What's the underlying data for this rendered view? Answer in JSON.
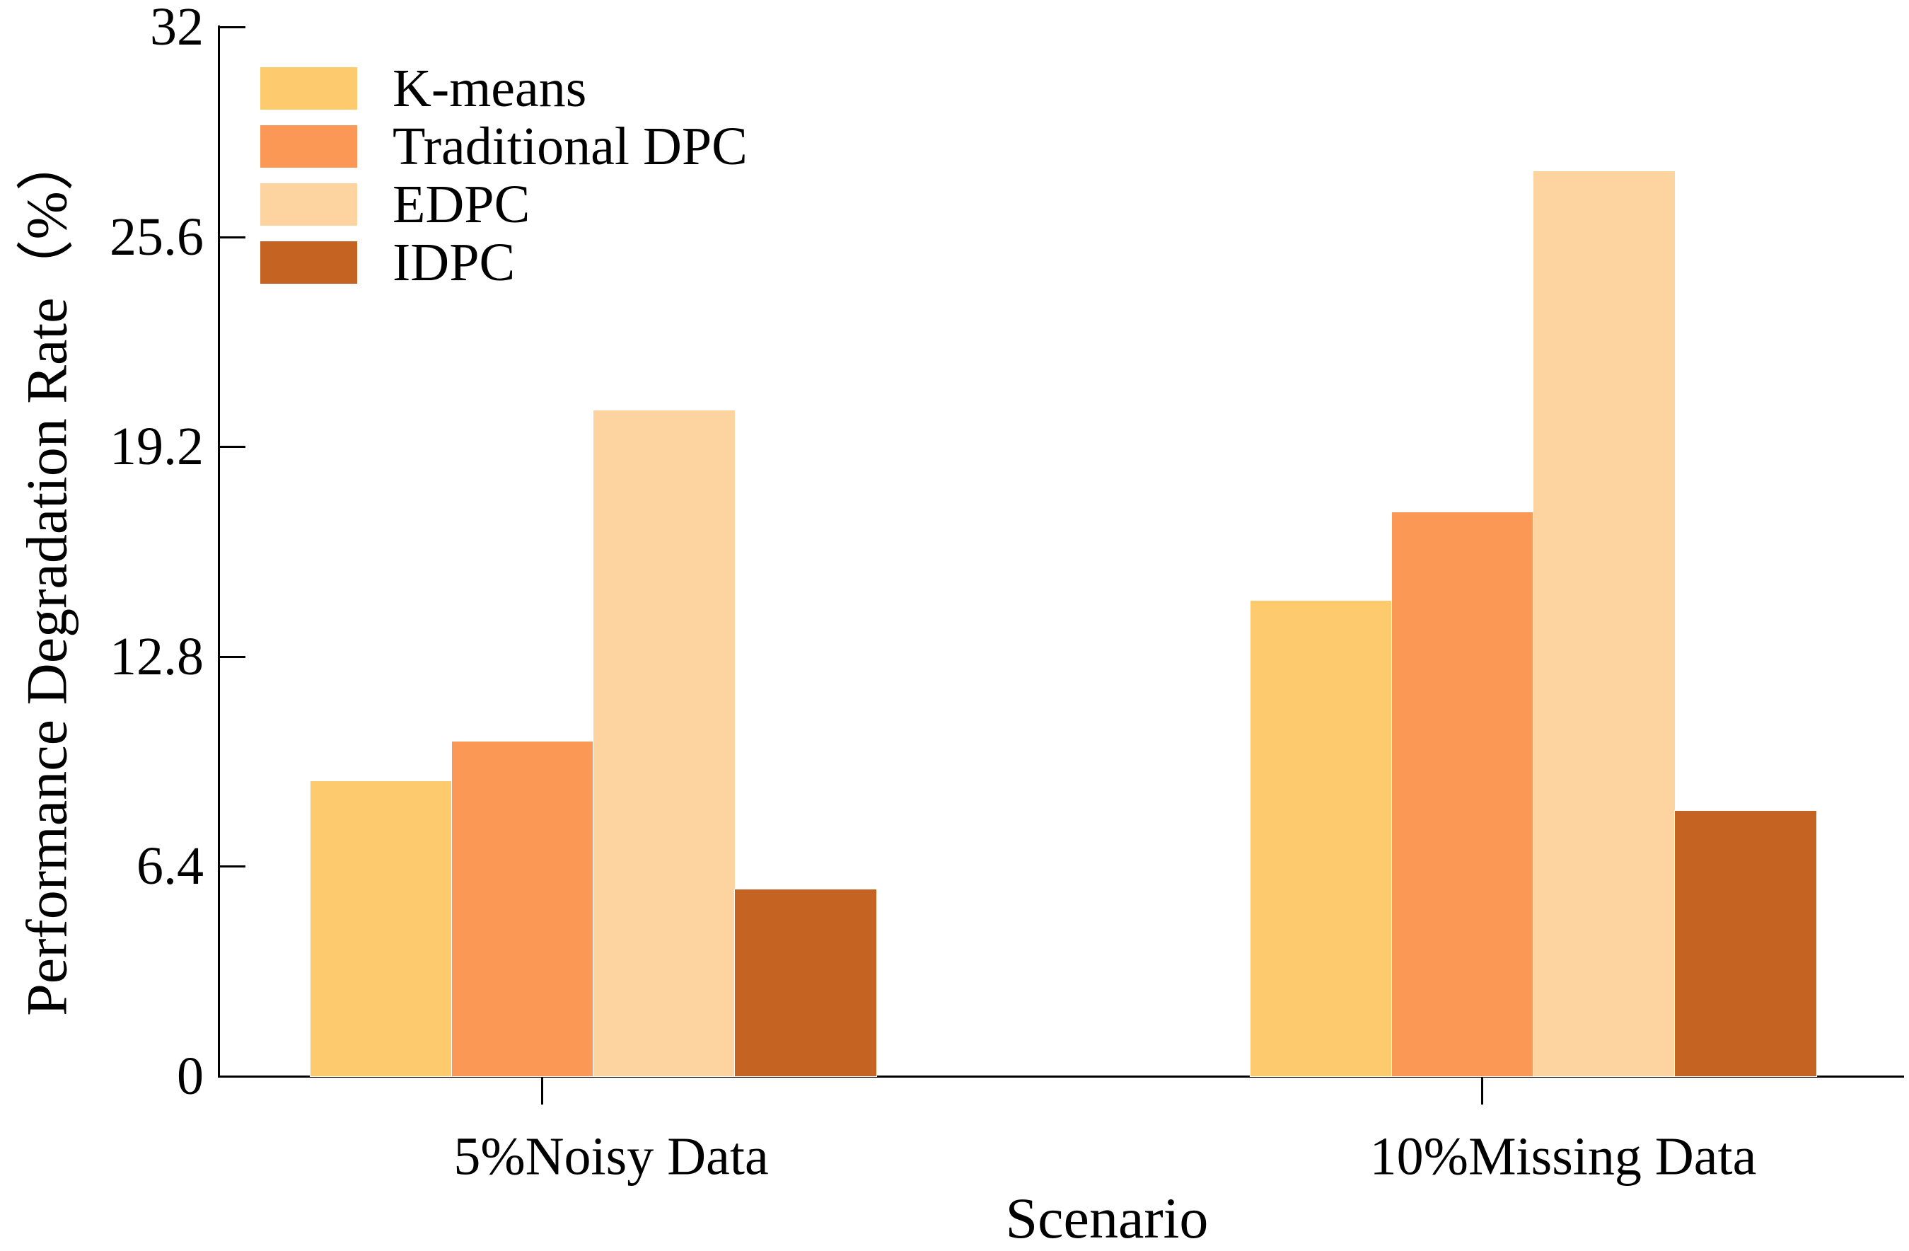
{
  "chart_data": {
    "type": "bar",
    "title": "",
    "xlabel": "Scenario",
    "ylabel": "Performance Degradation Rate（%）",
    "categories": [
      "5%Noisy Data",
      "10%Missing Data"
    ],
    "series": [
      {
        "name": "K-means",
        "color": "#FDCA6E",
        "values": [
          9.0,
          14.5
        ]
      },
      {
        "name": "Traditional DPC",
        "color": "#FC9856",
        "values": [
          10.2,
          17.2
        ]
      },
      {
        "name": "EDPC",
        "color": "#FDD3A0",
        "values": [
          20.3,
          27.6
        ]
      },
      {
        "name": "IDPC",
        "color": "#C46322",
        "values": [
          5.7,
          8.1
        ]
      }
    ],
    "ylim": [
      0,
      32
    ],
    "yticks": [
      0,
      6.4,
      12.8,
      19.2,
      25.6,
      32
    ],
    "ytick_labels": [
      "0",
      "6.4",
      "12.8",
      "19.2",
      "25.6",
      "32"
    ],
    "legend_position": "upper-left",
    "grid": false,
    "axis_color": "#000000",
    "background_color": "#ffffff"
  }
}
